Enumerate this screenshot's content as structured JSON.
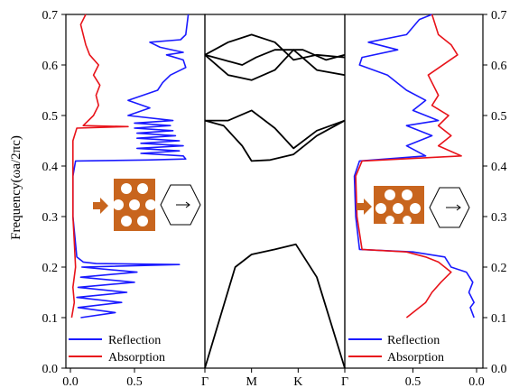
{
  "chart_data": {
    "type": "line",
    "y_axis": {
      "label": "Frequency(ωa/2πc)",
      "range": [
        0,
        0.7
      ],
      "ticks": [
        "0.0",
        "0.1",
        "0.2",
        "0.3",
        "0.4",
        "0.5",
        "0.6",
        "0.7"
      ],
      "tick_values": [
        0,
        0.1,
        0.2,
        0.3,
        0.4,
        0.5,
        0.6,
        0.7
      ]
    },
    "colors": {
      "reflection": "#1a1aff",
      "absorption": "#e8131a",
      "bands": "#000000",
      "inset_block": "#c8651e",
      "arrow": "#c8651e"
    },
    "panels": [
      {
        "id": "left-spectrum",
        "x_range": [
          0,
          1
        ],
        "x_ticks": [
          "0.0",
          "0.5"
        ],
        "x_tick_values": [
          0,
          0.5
        ],
        "legend": [
          "Reflection",
          "Absorption"
        ],
        "series": [
          {
            "name": "Reflection",
            "points": [
              [
                0.08,
                0.1
              ],
              [
                0.35,
                0.11
              ],
              [
                0.06,
                0.12
              ],
              [
                0.4,
                0.13
              ],
              [
                0.05,
                0.14
              ],
              [
                0.44,
                0.15
              ],
              [
                0.06,
                0.16
              ],
              [
                0.5,
                0.17
              ],
              [
                0.08,
                0.18
              ],
              [
                0.52,
                0.19
              ],
              [
                0.09,
                0.2
              ],
              [
                0.85,
                0.205
              ],
              [
                0.2,
                0.207
              ],
              [
                0.1,
                0.21
              ],
              [
                0.05,
                0.22
              ],
              [
                0.02,
                0.3
              ],
              [
                0.02,
                0.38
              ],
              [
                0.04,
                0.41
              ],
              [
                0.6,
                0.412
              ],
              [
                0.9,
                0.414
              ],
              [
                0.88,
                0.42
              ],
              [
                0.55,
                0.425
              ],
              [
                0.85,
                0.43
              ],
              [
                0.52,
                0.435
              ],
              [
                0.88,
                0.44
              ],
              [
                0.55,
                0.445
              ],
              [
                0.85,
                0.45
              ],
              [
                0.52,
                0.455
              ],
              [
                0.82,
                0.46
              ],
              [
                0.52,
                0.465
              ],
              [
                0.8,
                0.47
              ],
              [
                0.5,
                0.475
              ],
              [
                0.78,
                0.48
              ],
              [
                0.5,
                0.485
              ],
              [
                0.8,
                0.49
              ],
              [
                0.45,
                0.5
              ],
              [
                0.62,
                0.515
              ],
              [
                0.45,
                0.53
              ],
              [
                0.68,
                0.55
              ],
              [
                0.72,
                0.565
              ],
              [
                0.78,
                0.58
              ],
              [
                0.9,
                0.595
              ],
              [
                0.88,
                0.61
              ],
              [
                0.75,
                0.62
              ],
              [
                0.88,
                0.625
              ],
              [
                0.7,
                0.635
              ],
              [
                0.62,
                0.645
              ],
              [
                0.86,
                0.65
              ],
              [
                0.9,
                0.66
              ],
              [
                0.92,
                0.7
              ]
            ]
          },
          {
            "name": "Absorption",
            "points": [
              [
                0.01,
                0.1
              ],
              [
                0.03,
                0.13
              ],
              [
                0.02,
                0.16
              ],
              [
                0.04,
                0.2
              ],
              [
                0.03,
                0.25
              ],
              [
                0.02,
                0.3
              ],
              [
                0.02,
                0.35
              ],
              [
                0.02,
                0.4
              ],
              [
                0.02,
                0.45
              ],
              [
                0.05,
                0.475
              ],
              [
                0.45,
                0.478
              ],
              [
                0.1,
                0.48
              ],
              [
                0.18,
                0.5
              ],
              [
                0.22,
                0.52
              ],
              [
                0.2,
                0.54
              ],
              [
                0.23,
                0.56
              ],
              [
                0.18,
                0.58
              ],
              [
                0.22,
                0.6
              ],
              [
                0.15,
                0.62
              ],
              [
                0.12,
                0.64
              ],
              [
                0.1,
                0.66
              ],
              [
                0.08,
                0.68
              ],
              [
                0.12,
                0.7
              ]
            ]
          }
        ]
      },
      {
        "id": "band-structure",
        "x_ticks": [
          "Γ",
          "M",
          "K",
          "Γ"
        ],
        "x_tick_values": [
          0,
          1,
          2,
          3
        ],
        "bands": [
          [
            [
              0,
              0
            ],
            [
              0.65,
              0.2
            ],
            [
              1,
              0.225
            ],
            [
              1.5,
              0.235
            ],
            [
              1.95,
              0.245
            ],
            [
              2.4,
              0.18
            ],
            [
              3,
              0
            ]
          ],
          [
            [
              0,
              0.49
            ],
            [
              0.4,
              0.48
            ],
            [
              0.8,
              0.44
            ],
            [
              1,
              0.41
            ],
            [
              1.4,
              0.412
            ],
            [
              1.9,
              0.423
            ],
            [
              2.4,
              0.46
            ],
            [
              3,
              0.49
            ]
          ],
          [
            [
              0,
              0.49
            ],
            [
              0.5,
              0.49
            ],
            [
              1,
              0.51
            ],
            [
              1.5,
              0.475
            ],
            [
              1.9,
              0.435
            ],
            [
              2.4,
              0.47
            ],
            [
              3,
              0.49
            ]
          ],
          [
            [
              0,
              0.62
            ],
            [
              0.5,
              0.58
            ],
            [
              1,
              0.57
            ],
            [
              1.5,
              0.59
            ],
            [
              1.9,
              0.63
            ],
            [
              2.4,
              0.59
            ],
            [
              3,
              0.58
            ]
          ],
          [
            [
              0,
              0.62
            ],
            [
              0.5,
              0.645
            ],
            [
              1,
              0.66
            ],
            [
              1.5,
              0.645
            ],
            [
              1.9,
              0.61
            ],
            [
              2.4,
              0.62
            ],
            [
              3,
              0.615
            ]
          ],
          [
            [
              0,
              0.62
            ],
            [
              0.4,
              0.61
            ],
            [
              0.8,
              0.6
            ],
            [
              1.1,
              0.615
            ],
            [
              1.5,
              0.63
            ],
            [
              2.1,
              0.63
            ],
            [
              2.6,
              0.61
            ],
            [
              3,
              0.62
            ]
          ]
        ]
      },
      {
        "id": "right-spectrum",
        "x_range": [
          1,
          0
        ],
        "x_ticks": [
          "0.5",
          "0.0"
        ],
        "x_tick_values": [
          0.5,
          0
        ],
        "legend": [
          "Reflection",
          "Absorption"
        ],
        "series": [
          {
            "name": "Reflection",
            "points": [
              [
                0.02,
                0.1
              ],
              [
                0.05,
                0.12
              ],
              [
                0.02,
                0.13
              ],
              [
                0.06,
                0.15
              ],
              [
                0.03,
                0.17
              ],
              [
                0.08,
                0.19
              ],
              [
                0.2,
                0.2
              ],
              [
                0.25,
                0.22
              ],
              [
                0.5,
                0.23
              ],
              [
                0.92,
                0.235
              ],
              [
                0.95,
                0.3
              ],
              [
                0.96,
                0.38
              ],
              [
                0.92,
                0.41
              ],
              [
                0.4,
                0.42
              ],
              [
                0.55,
                0.44
              ],
              [
                0.35,
                0.46
              ],
              [
                0.55,
                0.48
              ],
              [
                0.3,
                0.49
              ],
              [
                0.5,
                0.51
              ],
              [
                0.4,
                0.53
              ],
              [
                0.55,
                0.55
              ],
              [
                0.7,
                0.58
              ],
              [
                0.92,
                0.6
              ],
              [
                0.9,
                0.615
              ],
              [
                0.62,
                0.63
              ],
              [
                0.85,
                0.645
              ],
              [
                0.55,
                0.66
              ],
              [
                0.45,
                0.69
              ],
              [
                0.35,
                0.7
              ]
            ]
          },
          {
            "name": "Absorption",
            "points": [
              [
                0.55,
                0.1
              ],
              [
                0.4,
                0.13
              ],
              [
                0.35,
                0.15
              ],
              [
                0.28,
                0.17
              ],
              [
                0.2,
                0.19
              ],
              [
                0.3,
                0.21
              ],
              [
                0.4,
                0.22
              ],
              [
                0.55,
                0.23
              ],
              [
                0.9,
                0.235
              ],
              [
                0.94,
                0.3
              ],
              [
                0.95,
                0.38
              ],
              [
                0.9,
                0.41
              ],
              [
                0.12,
                0.42
              ],
              [
                0.3,
                0.44
              ],
              [
                0.2,
                0.46
              ],
              [
                0.3,
                0.48
              ],
              [
                0.22,
                0.5
              ],
              [
                0.35,
                0.52
              ],
              [
                0.3,
                0.54
              ],
              [
                0.38,
                0.58
              ],
              [
                0.15,
                0.62
              ],
              [
                0.2,
                0.64
              ],
              [
                0.3,
                0.66
              ],
              [
                0.35,
                0.7
              ]
            ]
          }
        ]
      }
    ]
  }
}
